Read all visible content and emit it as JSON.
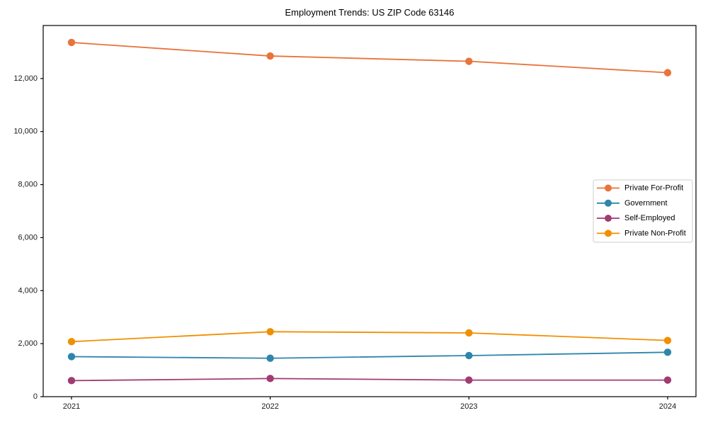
{
  "chart_data": {
    "type": "line",
    "title": "Employment Trends: US ZIP Code 63146",
    "x_categories": [
      "2021",
      "2022",
      "2023",
      "2024"
    ],
    "series": [
      {
        "name": "Private For-Profit",
        "color": "#e8743b",
        "values": [
          13360,
          12850,
          12650,
          12220
        ]
      },
      {
        "name": "Government",
        "color": "#2e86ab",
        "values": [
          1510,
          1450,
          1550,
          1675
        ]
      },
      {
        "name": "Self-Employed",
        "color": "#a23b72",
        "values": [
          605,
          685,
          625,
          625
        ]
      },
      {
        "name": "Private Non-Profit",
        "color": "#f18f01",
        "values": [
          2075,
          2450,
          2405,
          2120
        ]
      }
    ],
    "xlabel": "",
    "ylabel": "",
    "ylim": [
      0,
      14000
    ],
    "yticks": [
      0,
      2000,
      4000,
      6000,
      8000,
      10000,
      12000
    ],
    "ytick_labels": [
      "0",
      "2,000",
      "4,000",
      "6,000",
      "8,000",
      "10,000",
      "12,000"
    ],
    "grid": false,
    "legend_position": "middle-right",
    "marker": "circle"
  },
  "colors": {
    "axis": "#000000",
    "tick_label": "#1a1a1a",
    "legend_border": "#cccccc",
    "background": "#ffffff"
  }
}
